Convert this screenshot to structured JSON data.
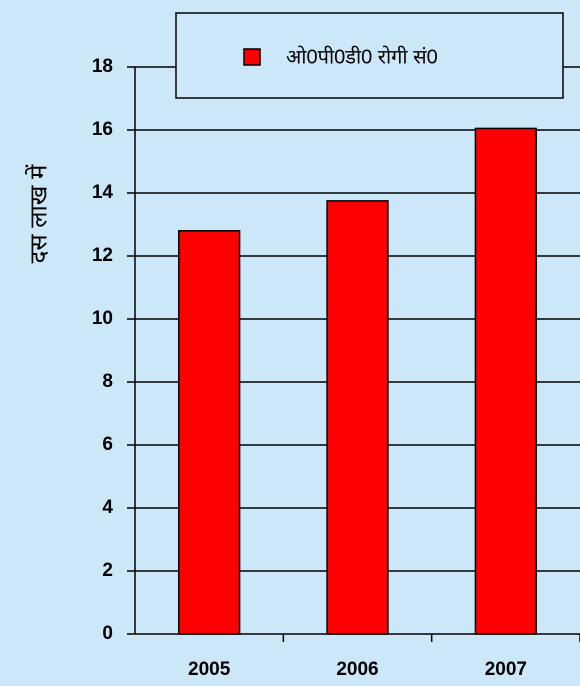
{
  "chart_data": {
    "type": "bar",
    "y_label": "दस लाख में",
    "categories": [
      "2005",
      "2006",
      "2007"
    ],
    "series": [
      {
        "name": "ओ0पी0डी0 रोगी सं0",
        "color": "#ff0000",
        "values": [
          12.8,
          13.75,
          16.05
        ]
      }
    ],
    "ylim": [
      0,
      18
    ],
    "yticks": [
      0,
      2,
      4,
      6,
      8,
      10,
      12,
      14,
      16,
      18
    ],
    "grid": true,
    "legend": "top"
  }
}
